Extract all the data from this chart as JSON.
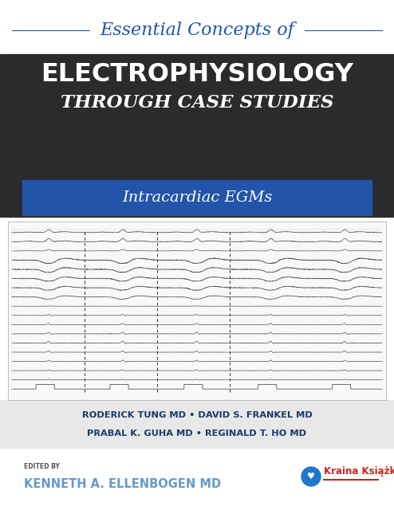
{
  "bg_color": "#ffffff",
  "dark_band_color": "#2b2b2b",
  "blue_band_color": "#2255aa",
  "light_gray_authors_bg": "#e8e8e8",
  "line1_text": "Essential Concepts of",
  "line1_color": "#2255aa",
  "line2_text": "ELECTROPHYSIOLOGY",
  "line2_color": "#ffffff",
  "line3_text": "THROUGH CASE STUDIES",
  "line3_color": "#ffffff",
  "line4_text": "Intracardiac EGMs",
  "line4_color": "#ffffff",
  "authors_line1": "RODERICK TUNG MD • DAVID S. FRANKEL MD",
  "authors_line2": "PRABAL K. GUHA MD • REGINALD T. HO MD",
  "authors_color": "#1a3a6b",
  "edited_by_label": "EDITED BY",
  "editor_name": "KENNETH A. ELLENBOGEN MD",
  "editor_color": "#6699cc",
  "ecg_color": "#555555",
  "border_color": "#aaaaaa",
  "decorative_line_color": "#2255aa",
  "logo_circle_color": "#2277cc",
  "logo_text_color": "#cc2222",
  "logo_text": "Kraina Książk",
  "edited_by_color": "#555555"
}
